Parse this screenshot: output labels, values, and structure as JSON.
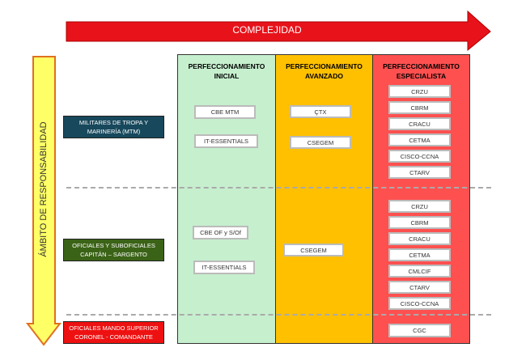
{
  "complexity_arrow": {
    "label": "COMPLEJIDAD",
    "color": "#e8121a"
  },
  "scope_arrow": {
    "label": "ÁMBITO DE RESPONSABILIDAD",
    "color": "#ffff66"
  },
  "columns": [
    {
      "title": "PERFECCIONAMIENTO INICIAL",
      "color": "#c6efce"
    },
    {
      "title": "PERFECCIONAMIENTO AVANZADO",
      "color": "#ffc000"
    },
    {
      "title": "PERFECCIONAMIENTO ESPECIALISTA",
      "color": "#ff5050"
    }
  ],
  "rows": [
    {
      "label": "MILITARES  DE TROPA Y MARINERÍA  (MTM)",
      "color": "#17485c"
    },
    {
      "label": "OFICIALES Y SUBOFICIALES CAPITÁN – SARGENTO",
      "color": "#3b6317"
    },
    {
      "label": "OFICIALES MANDO SUPERIOR CORONEL - COMANDANTE",
      "color": "#ee1111"
    }
  ],
  "courses": {
    "inicial_mtm": [
      "CBE MTM",
      "IT-ESSENTIALS"
    ],
    "avanzado_mtm": [
      "ÇTX",
      "CSEGEM"
    ],
    "especialista_mtm": [
      "CRZU",
      "CBRM",
      "CRACU",
      "CETMA",
      "CISCO-CCNA",
      "CTARV"
    ],
    "inicial_of": [
      "CBE OF y S/Of",
      "IT-ESSENTIALS"
    ],
    "avanzado_of": [
      "CSEGEM"
    ],
    "especialista_of": [
      "CRZU",
      "CBRM",
      "CRACU",
      "CETMA",
      "CMLCIF",
      "CTARV",
      "CISCO-CCNA"
    ],
    "especialista_sup": [
      "CGC"
    ]
  }
}
